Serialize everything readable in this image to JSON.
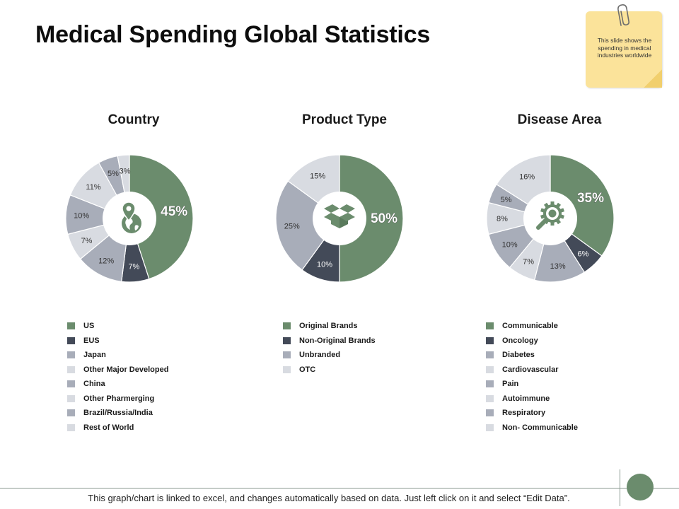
{
  "title": "Medical Spending Global Statistics",
  "note": {
    "text": "This slide shows the spending in medical industries worldwide"
  },
  "footer": {
    "text": "This graph/chart is linked to excel, and changes automatically based on data. Just left click on it and select “Edit Data”."
  },
  "colors": {
    "green": "#6b8c6d",
    "dark": "#434a58",
    "gray_mid": "#a8adb9",
    "gray_light": "#d8dbe1"
  },
  "chart_data": [
    {
      "type": "pie",
      "title": "Country",
      "center_icon": "globe-location-icon",
      "highlight_label": "45%",
      "categories": [
        "US",
        "EUS",
        "Japan",
        "Other Major Developed",
        "China",
        "Other Pharmerging",
        "Brazil/Russia/India",
        "Rest of World"
      ],
      "values": [
        45,
        7,
        12,
        7,
        10,
        11,
        5,
        3
      ],
      "labels": [
        "45%",
        "7%",
        "12%",
        "7%",
        "10%",
        "11%",
        "5%",
        "3%"
      ],
      "colors": [
        "#6b8c6d",
        "#434a58",
        "#a8adb9",
        "#d8dbe1",
        "#a8adb9",
        "#d8dbe1",
        "#a8adb9",
        "#d8dbe1"
      ]
    },
    {
      "type": "pie",
      "title": "Product Type",
      "center_icon": "box-icon",
      "highlight_label": "50%",
      "categories": [
        "Original Brands",
        "Non-Original Brands",
        "Unbranded",
        "OTC"
      ],
      "values": [
        50,
        10,
        25,
        15
      ],
      "labels": [
        "50%",
        "10%",
        "25%",
        "15%"
      ],
      "colors": [
        "#6b8c6d",
        "#434a58",
        "#a8adb9",
        "#d8dbe1"
      ]
    },
    {
      "type": "pie",
      "title": "Disease Area",
      "center_icon": "virus-magnifier-icon",
      "highlight_label": "35%",
      "categories": [
        "Communicable",
        "Oncology",
        "Diabetes",
        "Cardiovascular",
        "Pain",
        "Autoimmune",
        "Respiratory",
        "Non- Communicable"
      ],
      "values": [
        35,
        6,
        13,
        7,
        10,
        8,
        5,
        16
      ],
      "labels": [
        "35%",
        "6%",
        "13%",
        "7%",
        "10%",
        "8%",
        "5%",
        "16%"
      ],
      "colors": [
        "#6b8c6d",
        "#434a58",
        "#a8adb9",
        "#d8dbe1",
        "#a8adb9",
        "#d8dbe1",
        "#a8adb9",
        "#d8dbe1"
      ]
    }
  ]
}
